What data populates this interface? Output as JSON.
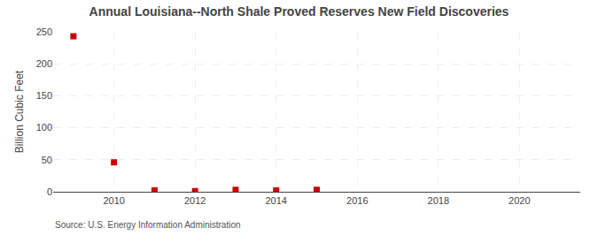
{
  "chart_data": {
    "type": "scatter",
    "title": "Annual Louisiana--North Shale Proved Reserves New Field Discoveries",
    "ylabel": "Billion Cubic Feet",
    "source": "Source: U.S. Energy Information Administration",
    "x": [
      2009,
      2010,
      2011,
      2012,
      2013,
      2014,
      2015
    ],
    "values": [
      243,
      46,
      2,
      1,
      3,
      2,
      3
    ],
    "color": "#cc0000",
    "marker": "square",
    "xlim": [
      2008.5,
      2021.5
    ],
    "xticks": [
      2010,
      2012,
      2014,
      2016,
      2018,
      2020
    ],
    "ylim": [
      0,
      250
    ],
    "yticks": [
      0,
      50,
      100,
      150,
      200,
      250
    ],
    "grid": true
  }
}
